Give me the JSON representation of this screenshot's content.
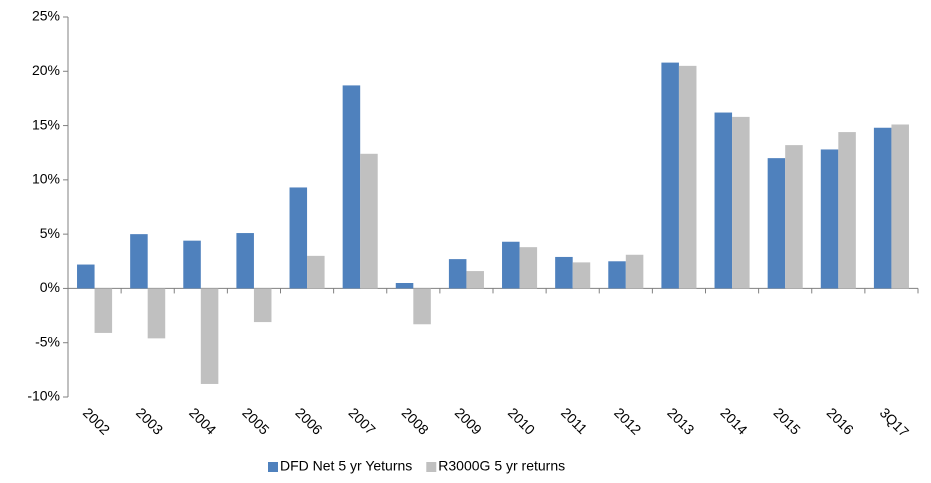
{
  "chart_data": {
    "type": "bar",
    "categories": [
      "2002",
      "2003",
      "2004",
      "2005",
      "2006",
      "2007",
      "2008",
      "2009",
      "2010",
      "2011",
      "2012",
      "2013",
      "2014",
      "2015",
      "2016",
      "3Q17"
    ],
    "series": [
      {
        "name": "DFD Net 5 yr Yeturns",
        "color": "#4f81bd",
        "values": [
          2.2,
          5.0,
          4.4,
          5.1,
          9.3,
          18.7,
          0.5,
          2.7,
          4.3,
          2.9,
          2.5,
          20.8,
          16.2,
          12.0,
          12.8,
          14.8
        ]
      },
      {
        "name": "R3000G 5 yr returns",
        "color": "#c0c0c0",
        "values": [
          -4.1,
          -4.6,
          -8.8,
          -3.1,
          3.0,
          12.4,
          -3.3,
          1.6,
          3.8,
          2.4,
          3.1,
          20.5,
          15.8,
          13.2,
          14.4,
          15.1
        ]
      }
    ],
    "ylim": [
      -10,
      25
    ],
    "yticks": [
      {
        "value": -10,
        "label": "-10%"
      },
      {
        "value": -5,
        "label": "-5%"
      },
      {
        "value": 0,
        "label": "0%"
      },
      {
        "value": 5,
        "label": "5%"
      },
      {
        "value": 10,
        "label": "10%"
      },
      {
        "value": 15,
        "label": "15%"
      },
      {
        "value": 20,
        "label": "20%"
      },
      {
        "value": 25,
        "label": "25%"
      }
    ],
    "legend": "bottom"
  }
}
